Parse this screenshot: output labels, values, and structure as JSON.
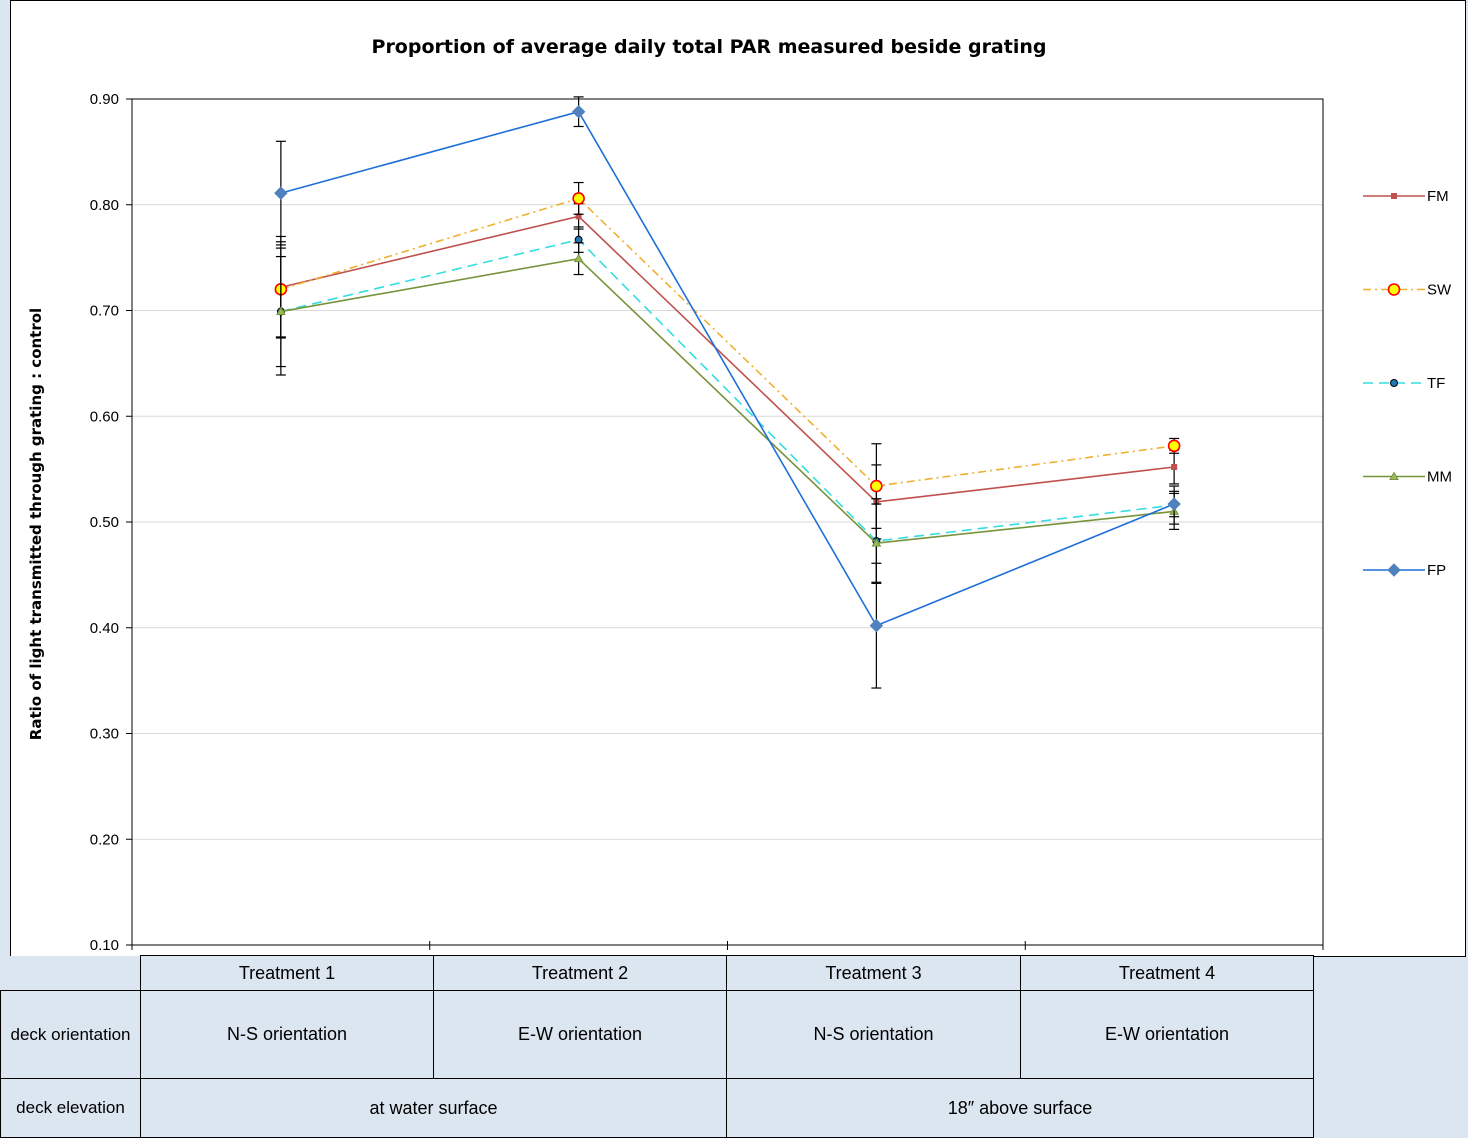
{
  "chart_data": {
    "type": "line",
    "title": "Proportion of average daily total PAR measured beside grating",
    "ylabel": "Ratio of light transmitted through grating : control",
    "xlabel": "",
    "ylim": [
      0.1,
      0.9
    ],
    "yticks": [
      "0.10",
      "0.20",
      "0.30",
      "0.40",
      "0.50",
      "0.60",
      "0.70",
      "0.80",
      "0.90"
    ],
    "categories": [
      "Treatment 1",
      "Treatment 2",
      "Treatment 3",
      "Treatment 4"
    ],
    "grid": true,
    "legend_position": "right",
    "series": [
      {
        "name": "FM",
        "color": "#c0504d",
        "dash": "solid",
        "marker": "square",
        "values": [
          0.722,
          0.789,
          0.519,
          0.552
        ],
        "errors": [
          0.048,
          0.012,
          0.035,
          0.016
        ]
      },
      {
        "name": "SW",
        "color": "#f0b030",
        "dash": "dashdot",
        "marker": "circle-yellow-red",
        "values": [
          0.72,
          0.806,
          0.534,
          0.572
        ],
        "errors": [
          0.045,
          0.015,
          0.04,
          0.007
        ]
      },
      {
        "name": "TF",
        "color": "#33dde0",
        "dash": "dash",
        "marker": "circle-small",
        "values": [
          0.699,
          0.767,
          0.482,
          0.516
        ],
        "errors": [
          0.052,
          0.012,
          0.04,
          0.018
        ]
      },
      {
        "name": "MM",
        "color": "#77933c",
        "dash": "solid",
        "marker": "triangle",
        "values": [
          0.699,
          0.749,
          0.48,
          0.51
        ],
        "errors": [
          0.06,
          0.015,
          0.037,
          0.017
        ]
      },
      {
        "name": "FP",
        "color": "#1f6fd8",
        "dash": "solid",
        "marker": "diamond",
        "values": [
          0.811,
          0.888,
          0.402,
          0.517
        ],
        "errors": [
          0.049,
          0.014,
          0.059,
          0.012
        ]
      }
    ]
  },
  "table": {
    "treatments": [
      "Treatment 1",
      "Treatment 2",
      "Treatment 3",
      "Treatment 4"
    ],
    "orientation_label": "deck orientation",
    "orientations": [
      "N-S orientation",
      "E-W orientation",
      "N-S orientation",
      "E-W orientation"
    ],
    "elevation_label": "deck elevation",
    "elevations": [
      "at water surface",
      "18″ above surface"
    ]
  }
}
